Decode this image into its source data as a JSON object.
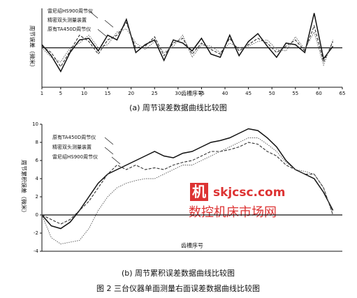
{
  "chart_data": [
    {
      "type": "line",
      "caption": "(a) 周节误差数据曲线比较图",
      "xlabel": "齿槽序号",
      "ylabel": "周节误差（微米）",
      "x": [
        1,
        3,
        5,
        7,
        9,
        11,
        13,
        15,
        17,
        19,
        21,
        23,
        25,
        27,
        29,
        31,
        33,
        35,
        37,
        39,
        41,
        43,
        45,
        47,
        49,
        51,
        53,
        55,
        57,
        59,
        61,
        63
      ],
      "xlim": [
        1,
        65
      ],
      "xticks": [
        1,
        5,
        10,
        15,
        20,
        25,
        30,
        35,
        40,
        45,
        50,
        55,
        60,
        65
      ],
      "ylim": [
        -2.5,
        2.5
      ],
      "zero_line": true,
      "series": [
        {
          "name": "雷尼绍HS900周节仪",
          "color": "#111111",
          "values": [
            0.2,
            -0.5,
            -1.5,
            -0.3,
            0.5,
            0.6,
            -0.2,
            0.8,
            0.5,
            1.8,
            -0.3,
            0.2,
            0.5,
            -0.8,
            0.5,
            0.3,
            -0.2,
            0.6,
            -0.4,
            -0.6,
            0.8,
            -0.5,
            0.4,
            0.9,
            0.1,
            -0.6,
            0.3,
            0.2,
            -0.3,
            2.2,
            -0.7,
            0.1
          ]
        },
        {
          "name": "精密双头测量装置",
          "color": "#333333",
          "values": [
            0.1,
            -0.3,
            -1.2,
            -0.2,
            0.8,
            0.4,
            -0.4,
            0.5,
            0.8,
            1.6,
            0,
            0.1,
            0.7,
            -0.5,
            0.3,
            0.6,
            -0.4,
            0.3,
            -0.1,
            -0.4,
            0.6,
            -0.2,
            0.2,
            0.6,
            0.3,
            -0.3,
            0.1,
            0.5,
            -0.2,
            1.4,
            -0.9,
            0.4
          ]
        },
        {
          "name": "原有TA450D周节仪",
          "color": "#555555",
          "values": [
            0,
            -0.6,
            -0.9,
            0,
            0.3,
            0.8,
            0,
            0.2,
            1,
            1.2,
            0.3,
            -0.1,
            0.4,
            -0.3,
            0.1,
            0.8,
            -0.6,
            0.2,
            0.1,
            -0.3,
            0.3,
            0,
            0.1,
            0.4,
            0.5,
            -0.1,
            -0.2,
            0.7,
            -0.1,
            1,
            -1.1,
            0.5
          ]
        }
      ]
    },
    {
      "type": "line",
      "caption": "(b) 周节累积误差数据曲线比较图",
      "xlabel": "齿槽序号",
      "ylabel": "周节累积误差（微米）",
      "x": [
        1,
        3,
        5,
        7,
        9,
        11,
        13,
        15,
        17,
        19,
        21,
        23,
        25,
        27,
        29,
        31,
        33,
        35,
        37,
        39,
        41,
        43,
        45,
        47,
        49,
        51,
        53,
        55,
        57,
        59,
        61,
        63
      ],
      "xlim": [
        1,
        65
      ],
      "ylim": [
        -4,
        10
      ],
      "yticks": [
        -4,
        -2,
        0,
        2,
        4,
        6,
        8,
        10
      ],
      "zero_line": true,
      "series": [
        {
          "name": "原有TA450D周节仪",
          "color": "#111111",
          "values": [
            0,
            -1.2,
            -1.5,
            -0.8,
            0.5,
            2,
            3.5,
            4.5,
            5,
            5.5,
            6,
            6.5,
            7,
            6.5,
            6.3,
            6.8,
            7,
            7.5,
            8,
            8.2,
            8.5,
            9,
            9.5,
            9.3,
            8.5,
            7.5,
            6,
            5,
            4.5,
            4,
            2.5,
            0.5
          ]
        },
        {
          "name": "精密双头测量装置",
          "color": "#333333",
          "values": [
            0,
            -0.5,
            -1,
            -0.5,
            0.5,
            1.5,
            3,
            4.5,
            5.5,
            5,
            5.5,
            5,
            5.2,
            5,
            5.5,
            5.8,
            6,
            6.5,
            7,
            7,
            7.2,
            7.5,
            8,
            7.8,
            7,
            6.5,
            5.5,
            5,
            4.5,
            4.5,
            3,
            0
          ]
        },
        {
          "name": "雷尼绍HS900周节仪",
          "color": "#555555",
          "values": [
            0,
            -2.5,
            -3.2,
            -3,
            -2.8,
            -1.5,
            0.5,
            2,
            3,
            3.5,
            3.8,
            4,
            4,
            4.5,
            5,
            5.5,
            5.5,
            6,
            6.5,
            7,
            7.5,
            8,
            8.5,
            8.5,
            7.8,
            7,
            5.8,
            5,
            4.8,
            4.5,
            3,
            0
          ]
        }
      ]
    }
  ],
  "figure_caption": "图 2 三台仪器单面测量右面误差数据曲线比较图",
  "watermark": {
    "logo": "机",
    "site": "skjcsc.com",
    "name": "数控机床市场网"
  }
}
